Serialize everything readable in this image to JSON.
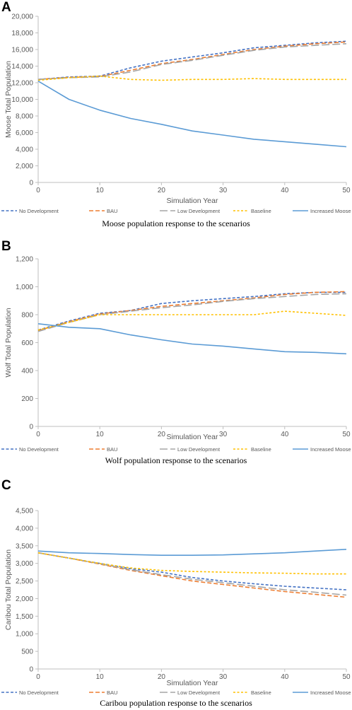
{
  "legend_labels": [
    "No Development",
    "BAU",
    "Low Development",
    "Baseline",
    "Increased Moose Harvest"
  ],
  "colors": {
    "no_development": "#4472C4",
    "bau": "#ED7D31",
    "low_development": "#A5A5A5",
    "baseline": "#FFC000",
    "increased_moose_harvest": "#5B9BD5",
    "axis": "#BFBFBF",
    "tick_text": "#595959"
  },
  "panels": [
    {
      "letter": "A",
      "caption": "Moose population response to the scenarios"
    },
    {
      "letter": "B",
      "caption": "Wolf population response to the scenarios"
    },
    {
      "letter": "C",
      "caption": "Caribou population response to the scenarios"
    }
  ],
  "chart_data": [
    {
      "type": "line",
      "title": "",
      "xlabel": "Simulation Year",
      "ylabel": "Moose Total Population",
      "xlim": [
        0,
        50
      ],
      "ylim": [
        0,
        20000
      ],
      "xticks": [
        0,
        10,
        20,
        30,
        40,
        50
      ],
      "yticks": [
        0,
        2000,
        4000,
        6000,
        8000,
        10000,
        12000,
        14000,
        16000,
        18000,
        20000
      ],
      "xtick_labels": [
        "0",
        "10",
        "20",
        "30",
        "40",
        "50"
      ],
      "ytick_labels": [
        "0",
        "2,000",
        "4,000",
        "6,000",
        "8,000",
        "10,000",
        "12,000",
        "14,000",
        "16,000",
        "18,000",
        "20,000"
      ],
      "grid": false,
      "legend_position": "bottom",
      "x": [
        0,
        5,
        10,
        15,
        20,
        25,
        30,
        35,
        40,
        45,
        50
      ],
      "series": [
        {
          "name": "No Development",
          "values": [
            12400,
            12700,
            12800,
            13800,
            14600,
            15100,
            15600,
            16200,
            16500,
            16800,
            17000
          ]
        },
        {
          "name": "BAU",
          "values": [
            12400,
            12650,
            12750,
            13500,
            14300,
            14800,
            15400,
            16000,
            16400,
            16700,
            16900
          ]
        },
        {
          "name": "Low Development",
          "values": [
            12400,
            12600,
            12700,
            13300,
            14200,
            14700,
            15300,
            15900,
            16300,
            16500,
            16700
          ]
        },
        {
          "name": "Baseline",
          "values": [
            12300,
            12600,
            12800,
            12400,
            12300,
            12400,
            12400,
            12500,
            12400,
            12400,
            12400
          ]
        },
        {
          "name": "Increased Moose Harvest",
          "values": [
            12200,
            10000,
            8700,
            7700,
            7000,
            6200,
            5700,
            5200,
            4900,
            4600,
            4300
          ]
        }
      ]
    },
    {
      "type": "line",
      "title": "",
      "xlabel": "Simulation Year",
      "ylabel": "Wolf Total Population",
      "xlim": [
        0,
        50
      ],
      "ylim": [
        0,
        1200
      ],
      "xticks": [
        0,
        10,
        20,
        30,
        40,
        50
      ],
      "yticks": [
        0,
        200,
        400,
        600,
        800,
        1000,
        1200
      ],
      "xtick_labels": [
        "0",
        "10",
        "20",
        "30",
        "40",
        "50"
      ],
      "ytick_labels": [
        "0",
        "200",
        "400",
        "600",
        "800",
        "1,000",
        "1,200"
      ],
      "grid": false,
      "legend_position": "bottom",
      "x": [
        0,
        5,
        10,
        15,
        20,
        25,
        30,
        35,
        40,
        45,
        50
      ],
      "series": [
        {
          "name": "No Development",
          "values": [
            690,
            755,
            810,
            830,
            880,
            900,
            915,
            930,
            950,
            960,
            960
          ]
        },
        {
          "name": "BAU",
          "values": [
            685,
            750,
            805,
            830,
            860,
            880,
            900,
            920,
            945,
            960,
            965
          ]
        },
        {
          "name": "Low Development",
          "values": [
            680,
            745,
            800,
            825,
            850,
            870,
            895,
            915,
            930,
            945,
            950
          ]
        },
        {
          "name": "Baseline",
          "values": [
            690,
            745,
            800,
            800,
            800,
            800,
            800,
            800,
            825,
            810,
            795
          ]
        },
        {
          "name": "Increased Moose Harvest",
          "values": [
            735,
            710,
            700,
            655,
            620,
            590,
            575,
            555,
            535,
            530,
            520
          ]
        }
      ]
    },
    {
      "type": "line",
      "title": "",
      "xlabel": "Simulation Year",
      "ylabel": "Caribou Total Population",
      "xlim": [
        0,
        50
      ],
      "ylim": [
        0,
        4500
      ],
      "xticks": [
        0,
        10,
        20,
        30,
        40,
        50
      ],
      "yticks": [
        0,
        500,
        1000,
        1500,
        2000,
        2500,
        3000,
        3500,
        4000,
        4500
      ],
      "xtick_labels": [
        "0",
        "10",
        "20",
        "30",
        "40",
        "50"
      ],
      "ytick_labels": [
        "0",
        "500",
        "1,000",
        "1,500",
        "2,000",
        "2,500",
        "3,000",
        "3,500",
        "4,000",
        "4,500"
      ],
      "grid": false,
      "legend_position": "bottom",
      "x": [
        0,
        5,
        10,
        15,
        20,
        25,
        30,
        35,
        40,
        45,
        50
      ],
      "series": [
        {
          "name": "No Development",
          "values": [
            3300,
            3150,
            3000,
            2850,
            2750,
            2600,
            2500,
            2420,
            2350,
            2300,
            2250
          ]
        },
        {
          "name": "BAU",
          "values": [
            3300,
            3150,
            2980,
            2800,
            2650,
            2500,
            2400,
            2300,
            2200,
            2120,
            2040
          ]
        },
        {
          "name": "Low Development",
          "values": [
            3300,
            3150,
            2990,
            2820,
            2680,
            2550,
            2450,
            2350,
            2250,
            2180,
            2100
          ]
        },
        {
          "name": "Baseline",
          "values": [
            3300,
            3150,
            3000,
            2870,
            2800,
            2770,
            2750,
            2730,
            2720,
            2700,
            2700
          ]
        },
        {
          "name": "Increased Moose Harvest",
          "values": [
            3350,
            3300,
            3280,
            3250,
            3230,
            3230,
            3240,
            3270,
            3300,
            3350,
            3400
          ]
        }
      ]
    }
  ]
}
